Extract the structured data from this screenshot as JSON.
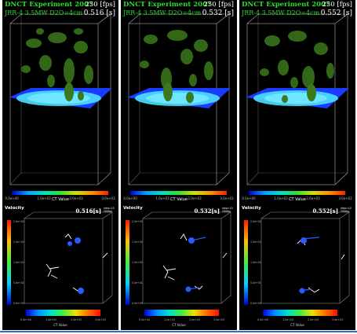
{
  "top_panels": [
    {
      "title": "DNCT Experiment 2007",
      "fps": "250 [fps]",
      "subtitle": "JRR-4 3.5MW D2O=4cm",
      "time": "0.516 [s]",
      "cbar_label": "CT Value",
      "ticks": [
        "0.0e+00",
        "1.0e+03",
        "2.0e+03",
        "3.0e+03"
      ]
    },
    {
      "title": "DNCT Experiment 2007",
      "fps": "250 [fps]",
      "subtitle": "JRR-4 3.5MW D2O=4cm",
      "time": "0.532 [s]",
      "cbar_label": "CT Value",
      "ticks": [
        "0.0e+00",
        "1.0e+03",
        "2.0e+03",
        "3.0e+03"
      ]
    },
    {
      "title": "DNCT Experiment 2007",
      "fps": "250 [fps]",
      "subtitle": "JRR-4 3.5MW D2O=4cm",
      "time": "0.552 [s]",
      "cbar_label": "CT Value",
      "ticks": [
        "0.0e+00",
        "1.0e+03",
        "2.0e+03",
        "3.0e+03"
      ]
    }
  ],
  "bottom_panels": [
    {
      "velocity_label": "Velocity",
      "time": "0.516[s]",
      "fps_note": "step=10 250fps",
      "vticks": [
        "2.0e+02",
        "1.5e+02",
        "1.0e+02",
        "5.0e+01",
        "0.0e+00"
      ],
      "cbar_label": "CT Value",
      "hticks": [
        "0.0e+00",
        "1.0e+03",
        "2.0e+03",
        "3.0e+03"
      ]
    },
    {
      "velocity_label": "Velocity",
      "time": "0.532[s]",
      "fps_note": "step=10 250fps",
      "vticks": [
        "2.0e+02",
        "1.5e+02",
        "1.0e+02",
        "5.0e+01",
        "0.0e+00"
      ],
      "cbar_label": "CT Value",
      "hticks": [
        "0.0e+00",
        "1.0e+03",
        "2.0e+03",
        "3.0e+03"
      ]
    },
    {
      "velocity_label": "Velocity",
      "time": "0.552[s]",
      "fps_note": "step=10 250fps",
      "vticks": [
        "2.0e+02",
        "1.5e+02",
        "1.0e+02",
        "5.0e+01",
        "0.0e+00"
      ],
      "cbar_label": "CT Value",
      "hticks": [
        "0.0e+00",
        "1.0e+03",
        "2.0e+03",
        "3.0e+03"
      ]
    }
  ],
  "colors": {
    "title_green": "#2fd82f",
    "slice_blue": "#1a3cff",
    "accent_line": "#2a6bd8"
  }
}
